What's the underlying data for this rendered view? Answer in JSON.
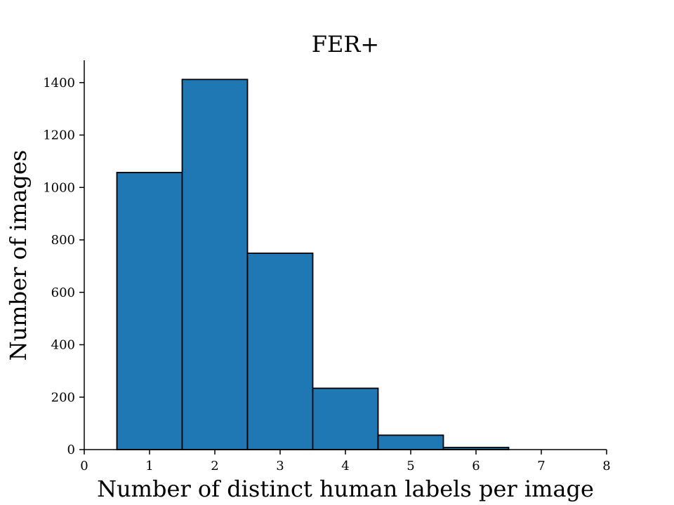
{
  "chart_data": {
    "type": "bar",
    "title": "FER+",
    "xlabel": "Number of distinct human labels per image",
    "ylabel": "Number of images",
    "bins": [
      {
        "x": 1,
        "value": 1057
      },
      {
        "x": 2,
        "value": 1412
      },
      {
        "x": 3,
        "value": 749
      },
      {
        "x": 4,
        "value": 234
      },
      {
        "x": 5,
        "value": 55
      },
      {
        "x": 6,
        "value": 8
      }
    ],
    "bar_width": 1,
    "xlim": [
      0,
      8
    ],
    "ylim": [
      0,
      1485
    ],
    "x_ticks": [
      0,
      1,
      2,
      3,
      4,
      5,
      6,
      7,
      8
    ],
    "y_ticks": [
      0,
      200,
      400,
      600,
      800,
      1000,
      1200,
      1400
    ],
    "bar_color": "#1f77b4",
    "edge_color": "#000000",
    "grid": false,
    "spines": [
      "left",
      "bottom"
    ]
  }
}
